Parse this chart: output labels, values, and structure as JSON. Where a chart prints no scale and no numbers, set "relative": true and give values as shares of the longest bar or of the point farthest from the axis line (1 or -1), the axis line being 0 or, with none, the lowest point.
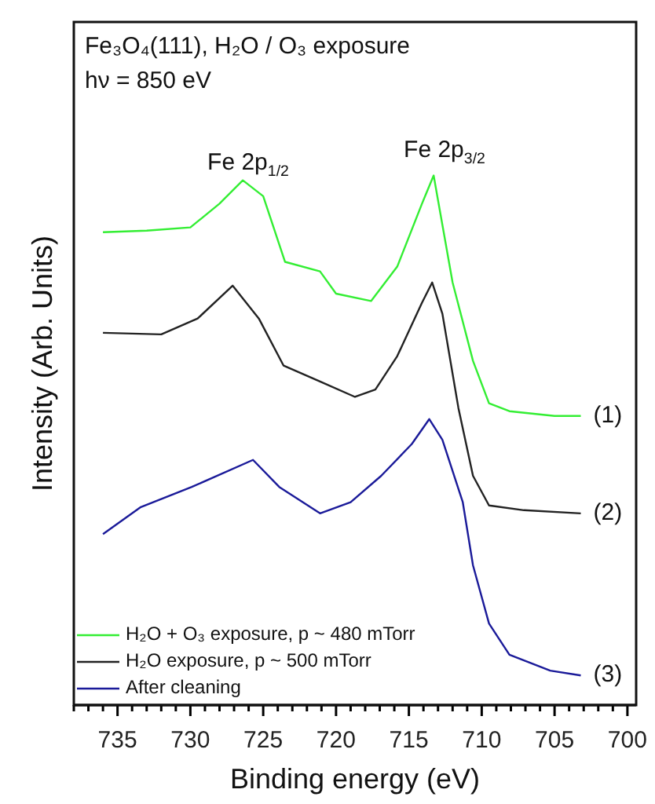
{
  "chart_data": {
    "type": "line",
    "title": "Fe₃O₄(111), H₂O / O₃ exposure",
    "subtitle": "hν = 850 eV",
    "xlabel": "Binding energy (eV)",
    "ylabel": "Intensity (Arb. Units)",
    "relative": true,
    "xlim": [
      738,
      699.4
    ],
    "xticks": [
      {
        "value": 738,
        "label": null
      },
      {
        "value": 737,
        "label": null
      },
      {
        "value": 736,
        "label": null
      },
      735,
      {
        "value": 734,
        "label": null
      },
      {
        "value": 733,
        "label": null
      },
      {
        "value": 732,
        "label": null
      },
      {
        "value": 731,
        "label": null
      },
      730,
      {
        "value": 729,
        "label": null
      },
      {
        "value": 728,
        "label": null
      },
      {
        "value": 727,
        "label": null
      },
      {
        "value": 726,
        "label": null
      },
      725,
      {
        "value": 724,
        "label": null
      },
      {
        "value": 723,
        "label": null
      },
      {
        "value": 722,
        "label": null
      },
      {
        "value": 721,
        "label": null
      },
      720,
      {
        "value": 719,
        "label": null
      },
      {
        "value": 718,
        "label": null
      },
      {
        "value": 717,
        "label": null
      },
      {
        "value": 716,
        "label": null
      },
      715,
      {
        "value": 714,
        "label": null
      },
      {
        "value": 713,
        "label": null
      },
      {
        "value": 712,
        "label": null
      },
      {
        "value": 711,
        "label": null
      },
      710,
      {
        "value": 709,
        "label": null
      },
      {
        "value": 708,
        "label": null
      },
      {
        "value": 707,
        "label": null
      },
      {
        "value": 706,
        "label": null
      },
      705,
      {
        "value": 704,
        "label": null
      },
      {
        "value": 703,
        "label": null
      },
      {
        "value": 702,
        "label": null
      },
      {
        "value": 701,
        "label": null
      },
      700
    ],
    "legend": "bottom left",
    "grid": false,
    "marker": "none",
    "line_style": "solid",
    "series": [
      {
        "name": "H₂O + O₃ exposure, p ~ 480 mTorr",
        "color": "#33ee33",
        "x": [
          736.0,
          733,
          730,
          728,
          726.4,
          725,
          723.5,
          721.1,
          720,
          717.6,
          715.8,
          714.1,
          713.3,
          712.0,
          710.6,
          709.5,
          708.1,
          705,
          703.2
        ],
        "values": [
          0.893,
          0.896,
          0.902,
          0.947,
          0.991,
          0.961,
          0.837,
          0.819,
          0.777,
          0.763,
          0.828,
          0.947,
          1.0,
          0.798,
          0.65,
          0.57,
          0.555,
          0.546,
          0.546
        ]
      },
      {
        "name": "H₂O exposure, p ~ 500 mTorr",
        "color": "#222222",
        "x": [
          736.0,
          732,
          729.5,
          727.1,
          725.3,
          723.6,
          721.1,
          718.7,
          717.3,
          715.8,
          714.1,
          713.4,
          712.7,
          711.6,
          710.6,
          709.5,
          707.1,
          703.2
        ],
        "values": [
          0.703,
          0.7,
          0.73,
          0.792,
          0.73,
          0.641,
          0.611,
          0.582,
          0.596,
          0.659,
          0.76,
          0.798,
          0.739,
          0.561,
          0.433,
          0.377,
          0.368,
          0.362
        ]
      },
      {
        "name": "After cleaning",
        "color": "#1a1a99",
        "x": [
          736.0,
          733.4,
          729.9,
          725.7,
          723.9,
          721.1,
          719,
          716.9,
          714.8,
          713.6,
          712.7,
          711.3,
          710.6,
          709.5,
          708.1,
          705.3,
          703.2
        ],
        "values": [
          0.323,
          0.374,
          0.412,
          0.463,
          0.412,
          0.362,
          0.383,
          0.433,
          0.493,
          0.54,
          0.501,
          0.383,
          0.264,
          0.154,
          0.095,
          0.065,
          0.056
        ]
      }
    ],
    "annotations": [
      "Fe 2p$_{1/2}$",
      "Fe 2p$_{3/2}$",
      "(1)",
      "(2)",
      "(3)"
    ]
  }
}
